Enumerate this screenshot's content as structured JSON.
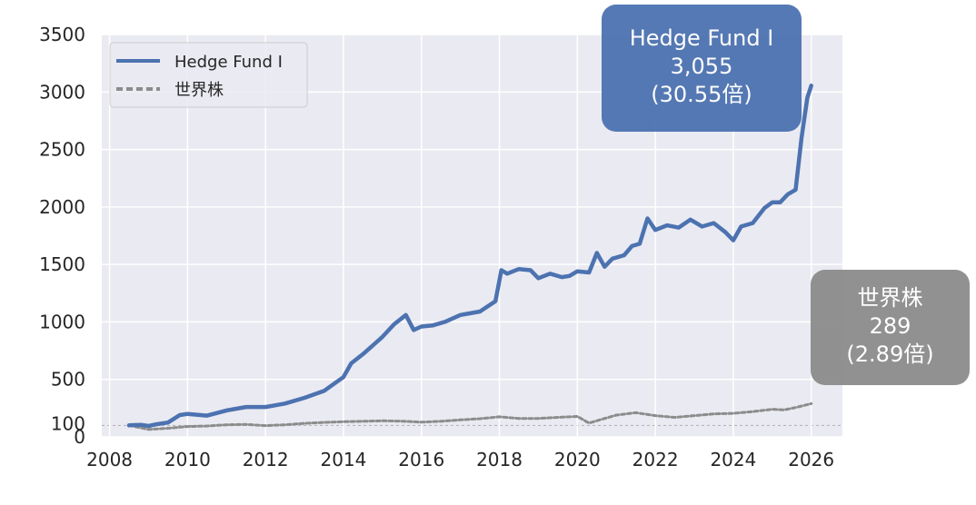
{
  "chart_data": {
    "type": "line",
    "title": "",
    "xlabel": "",
    "ylabel": "",
    "xlim": [
      2007.8,
      2026.8
    ],
    "ylim": [
      0,
      3500
    ],
    "grid": true,
    "legend_placement": "top-left",
    "x_ticks": [
      "2008",
      "2010",
      "2012",
      "2014",
      "2016",
      "2018",
      "2020",
      "2022",
      "2024",
      "2026"
    ],
    "y_ticks": [
      "3500",
      "3000",
      "2500",
      "2000",
      "1500",
      "1000",
      "500",
      "100",
      "0"
    ],
    "reference_line": 100,
    "series": [
      {
        "name": "Hedge Fund I",
        "color": "#4c72b0",
        "style": "solid",
        "x": [
          2008.5,
          2008.8,
          2009.0,
          2009.2,
          2009.5,
          2009.8,
          2010.0,
          2010.5,
          2011.0,
          2011.5,
          2012.0,
          2012.5,
          2013.0,
          2013.5,
          2014.0,
          2014.2,
          2014.5,
          2014.8,
          2015.0,
          2015.3,
          2015.6,
          2015.8,
          2016.0,
          2016.3,
          2016.6,
          2017.0,
          2017.5,
          2017.9,
          2018.05,
          2018.2,
          2018.5,
          2018.8,
          2019.0,
          2019.3,
          2019.6,
          2019.8,
          2020.0,
          2020.3,
          2020.5,
          2020.7,
          2020.9,
          2021.2,
          2021.4,
          2021.6,
          2021.8,
          2022.0,
          2022.3,
          2022.6,
          2022.9,
          2023.2,
          2023.5,
          2023.8,
          2024.0,
          2024.2,
          2024.5,
          2024.8,
          2025.0,
          2025.2,
          2025.4,
          2025.6,
          2025.75,
          2025.9,
          2026.0
        ],
        "values": [
          100,
          105,
          95,
          110,
          125,
          190,
          200,
          185,
          230,
          260,
          260,
          290,
          340,
          400,
          520,
          640,
          720,
          810,
          870,
          980,
          1060,
          930,
          960,
          970,
          1000,
          1060,
          1090,
          1180,
          1450,
          1420,
          1460,
          1450,
          1380,
          1420,
          1390,
          1400,
          1440,
          1430,
          1600,
          1480,
          1550,
          1580,
          1660,
          1680,
          1900,
          1800,
          1840,
          1820,
          1890,
          1830,
          1860,
          1780,
          1710,
          1830,
          1860,
          1990,
          2040,
          2040,
          2110,
          2150,
          2600,
          2950,
          3055
        ]
      },
      {
        "name": "世界株",
        "color": "#8c8c8c",
        "style": "dashed",
        "x": [
          2008.5,
          2009.0,
          2009.5,
          2010.0,
          2010.5,
          2011.0,
          2011.5,
          2012.0,
          2012.5,
          2013.0,
          2013.5,
          2014.0,
          2014.5,
          2015.0,
          2015.5,
          2016.0,
          2016.5,
          2017.0,
          2017.5,
          2018.0,
          2018.5,
          2019.0,
          2019.5,
          2020.0,
          2020.3,
          2020.6,
          2021.0,
          2021.5,
          2022.0,
          2022.5,
          2023.0,
          2023.5,
          2024.0,
          2024.5,
          2025.0,
          2025.3,
          2025.6,
          2026.0
        ],
        "values": [
          100,
          65,
          75,
          90,
          95,
          105,
          108,
          98,
          105,
          118,
          126,
          132,
          136,
          140,
          137,
          128,
          136,
          148,
          158,
          175,
          160,
          160,
          170,
          178,
          120,
          150,
          190,
          210,
          185,
          170,
          185,
          200,
          205,
          220,
          240,
          235,
          255,
          289
        ]
      }
    ],
    "annotations": [
      {
        "series": "Hedge Fund I",
        "name": "Hedge Fund I",
        "value": "3,055",
        "multiple": "(30.55倍)"
      },
      {
        "series": "世界株",
        "name": "世界株",
        "value": "289",
        "multiple": "(2.89倍)"
      }
    ]
  }
}
